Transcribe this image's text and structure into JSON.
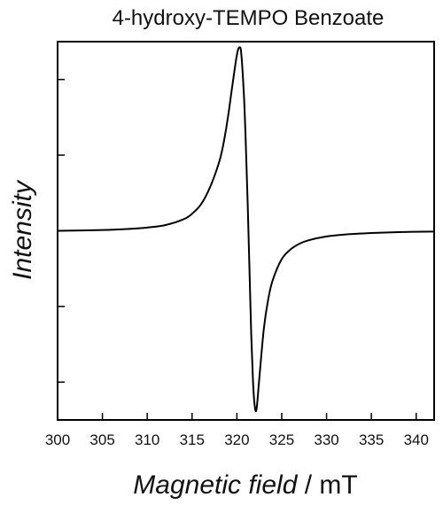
{
  "chart_data": {
    "type": "line",
    "title": "4-hydroxy-TEMPO Benzoate",
    "xlabel_italic": "Magnetic field",
    "xlabel_unit": " / mT",
    "ylabel": "Intensity",
    "xlim": [
      300,
      342
    ],
    "ylim": [
      -1.0,
      1.0
    ],
    "x_ticks": [
      300,
      305,
      310,
      315,
      320,
      325,
      330,
      335,
      340
    ],
    "y_ticks": [
      -0.8,
      -0.4,
      0,
      0.4,
      0.8
    ],
    "y_tick_labels_shown": false,
    "grid": false,
    "series": [
      {
        "color": "#000000",
        "x": [
          300,
          305,
          308,
          310,
          312,
          314,
          315,
          316,
          317,
          318,
          318.5,
          319,
          319.5,
          320,
          320.3,
          320.5,
          320.8,
          321,
          321.2,
          321.4,
          321.6,
          321.8,
          322,
          322.2,
          322.5,
          323,
          323.5,
          324,
          325,
          326,
          327,
          328,
          330,
          332,
          335,
          338,
          342
        ],
        "y": [
          0.0,
          0.004,
          0.01,
          0.017,
          0.03,
          0.06,
          0.09,
          0.14,
          0.23,
          0.36,
          0.46,
          0.6,
          0.77,
          0.93,
          0.97,
          0.93,
          0.7,
          0.45,
          0.15,
          -0.2,
          -0.55,
          -0.8,
          -0.93,
          -0.94,
          -0.78,
          -0.52,
          -0.36,
          -0.26,
          -0.15,
          -0.098,
          -0.068,
          -0.05,
          -0.03,
          -0.02,
          -0.012,
          -0.007,
          -0.004
        ]
      }
    ]
  }
}
